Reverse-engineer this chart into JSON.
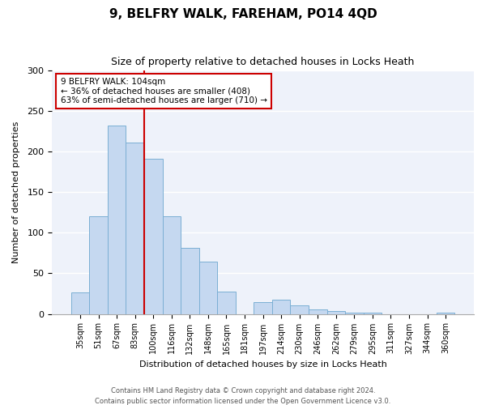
{
  "title": "9, BELFRY WALK, FAREHAM, PO14 4QD",
  "subtitle": "Size of property relative to detached houses in Locks Heath",
  "xlabel": "Distribution of detached houses by size in Locks Heath",
  "ylabel": "Number of detached properties",
  "bar_color": "#c5d8f0",
  "bar_edge_color": "#7bafd4",
  "background_color": "#eef2fa",
  "categories": [
    "35sqm",
    "51sqm",
    "67sqm",
    "83sqm",
    "100sqm",
    "116sqm",
    "132sqm",
    "148sqm",
    "165sqm",
    "181sqm",
    "197sqm",
    "214sqm",
    "230sqm",
    "246sqm",
    "262sqm",
    "279sqm",
    "295sqm",
    "311sqm",
    "327sqm",
    "344sqm",
    "360sqm"
  ],
  "values": [
    27,
    120,
    232,
    211,
    191,
    120,
    81,
    64,
    28,
    0,
    15,
    18,
    11,
    6,
    4,
    2,
    2,
    0,
    0,
    0,
    2
  ],
  "vline_index": 4,
  "vline_color": "#cc0000",
  "annotation_title": "9 BELFRY WALK: 104sqm",
  "annotation_line1": "← 36% of detached houses are smaller (408)",
  "annotation_line2": "63% of semi-detached houses are larger (710) →",
  "annotation_box_facecolor": "#ffffff",
  "annotation_box_edgecolor": "#cc0000",
  "ylim": [
    0,
    300
  ],
  "yticks": [
    0,
    50,
    100,
    150,
    200,
    250,
    300
  ],
  "footer1": "Contains HM Land Registry data © Crown copyright and database right 2024.",
  "footer2": "Contains public sector information licensed under the Open Government Licence v3.0."
}
